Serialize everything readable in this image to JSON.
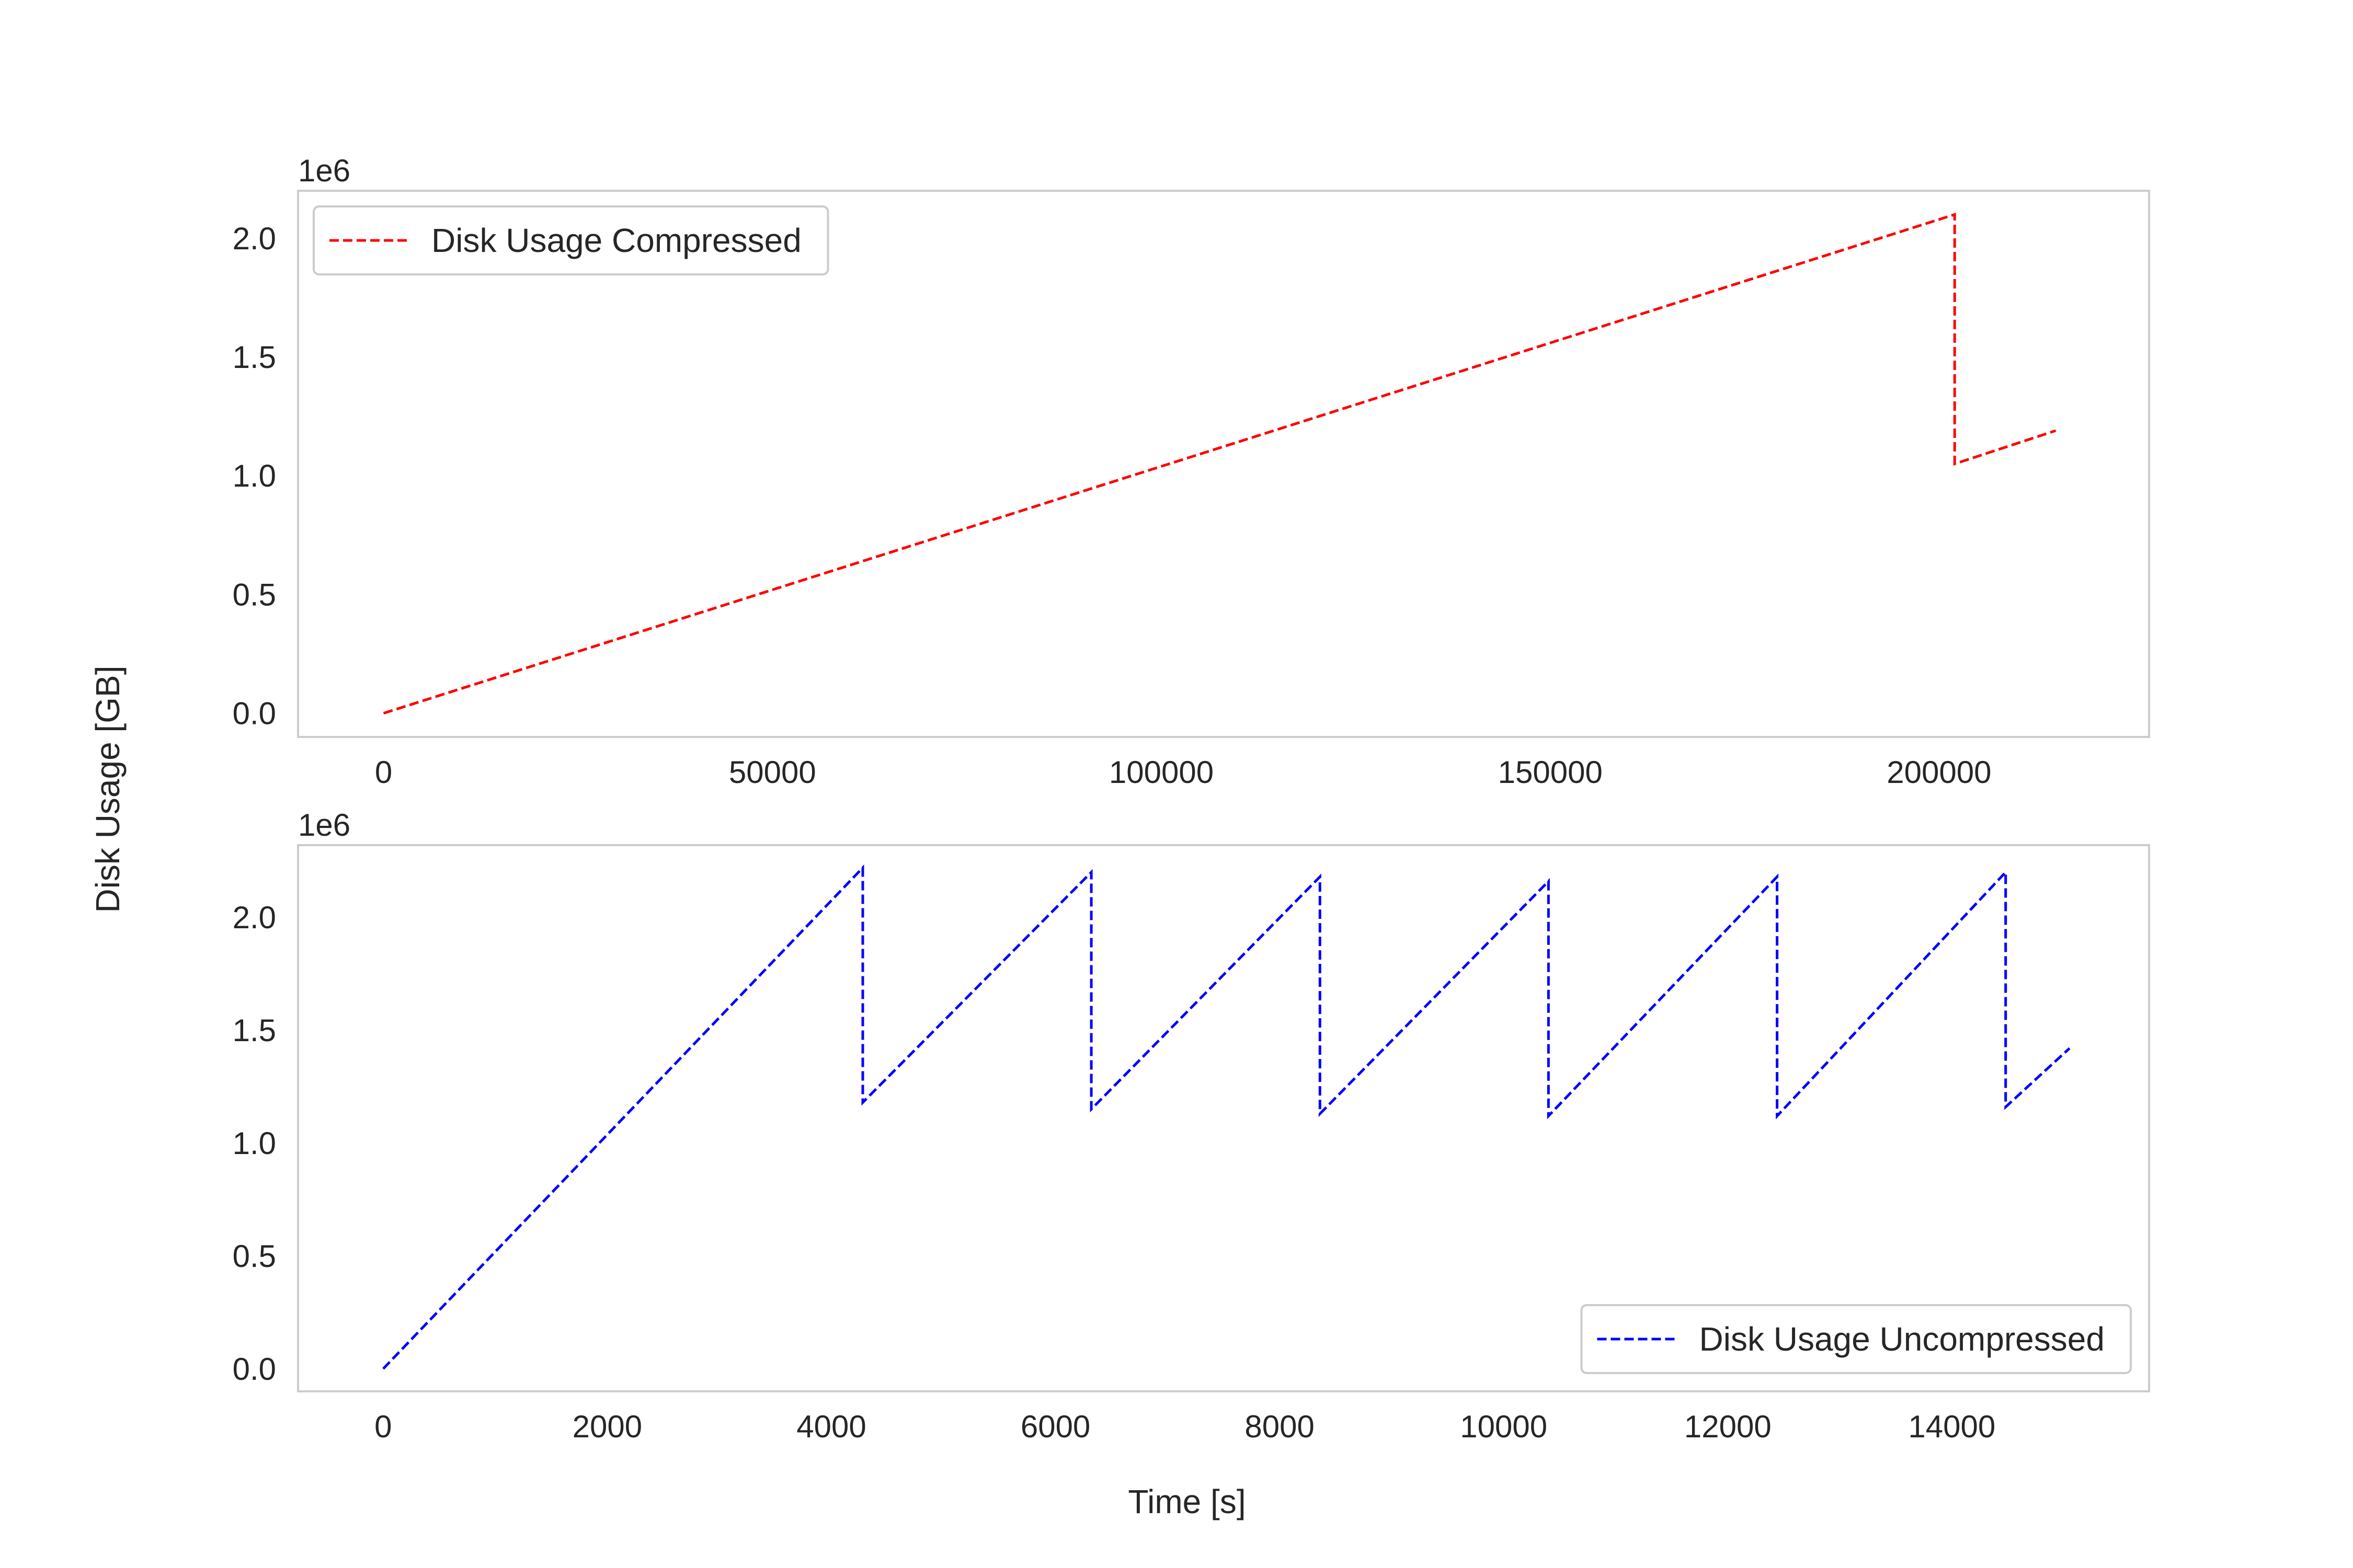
{
  "figure": {
    "ylabel": "Disk Usage [GB]",
    "xlabel": "Time [s]"
  },
  "chart_data": [
    {
      "type": "line",
      "y_multiplier": "1e6",
      "xlim": [
        -11000,
        227000
      ],
      "ylim": [
        -0.1,
        2.2
      ],
      "xticks": [
        0,
        50000,
        100000,
        150000,
        200000
      ],
      "xtick_labels": [
        "0",
        "50000",
        "100000",
        "150000",
        "200000"
      ],
      "yticks": [
        0.0,
        0.5,
        1.0,
        1.5,
        2.0
      ],
      "ytick_labels": [
        "0.0",
        "0.5",
        "1.0",
        "1.5",
        "2.0"
      ],
      "grid": false,
      "legend_position": "top-left",
      "series": [
        {
          "name": "Disk Usage Compressed",
          "color": "#ff0000",
          "linestyle": "dashed",
          "x": [
            0,
            202000,
            202000,
            215000
          ],
          "y": [
            0.0,
            2.1,
            1.05,
            1.19
          ]
        }
      ]
    },
    {
      "type": "line",
      "y_multiplier": "1e6",
      "xlim": [
        -760,
        15760
      ],
      "ylim": [
        -0.1,
        2.32
      ],
      "xticks": [
        0,
        2000,
        4000,
        6000,
        8000,
        10000,
        12000,
        14000
      ],
      "xtick_labels": [
        "0",
        "2000",
        "4000",
        "6000",
        "8000",
        "10000",
        "12000",
        "14000"
      ],
      "yticks": [
        0.0,
        0.5,
        1.0,
        1.5,
        2.0
      ],
      "ytick_labels": [
        "0.0",
        "0.5",
        "1.0",
        "1.5",
        "2.0"
      ],
      "grid": false,
      "legend_position": "bottom-right",
      "series": [
        {
          "name": "Disk Usage Uncompressed",
          "color": "#0000ff",
          "linestyle": "dashed",
          "x": [
            0,
            4280,
            4280,
            6320,
            6320,
            8360,
            8360,
            10400,
            10400,
            12440,
            12440,
            14480,
            14480,
            15050
          ],
          "y": [
            0.0,
            2.22,
            1.18,
            2.2,
            1.15,
            2.18,
            1.13,
            2.16,
            1.12,
            2.18,
            1.12,
            2.2,
            1.16,
            1.42
          ]
        }
      ]
    }
  ]
}
